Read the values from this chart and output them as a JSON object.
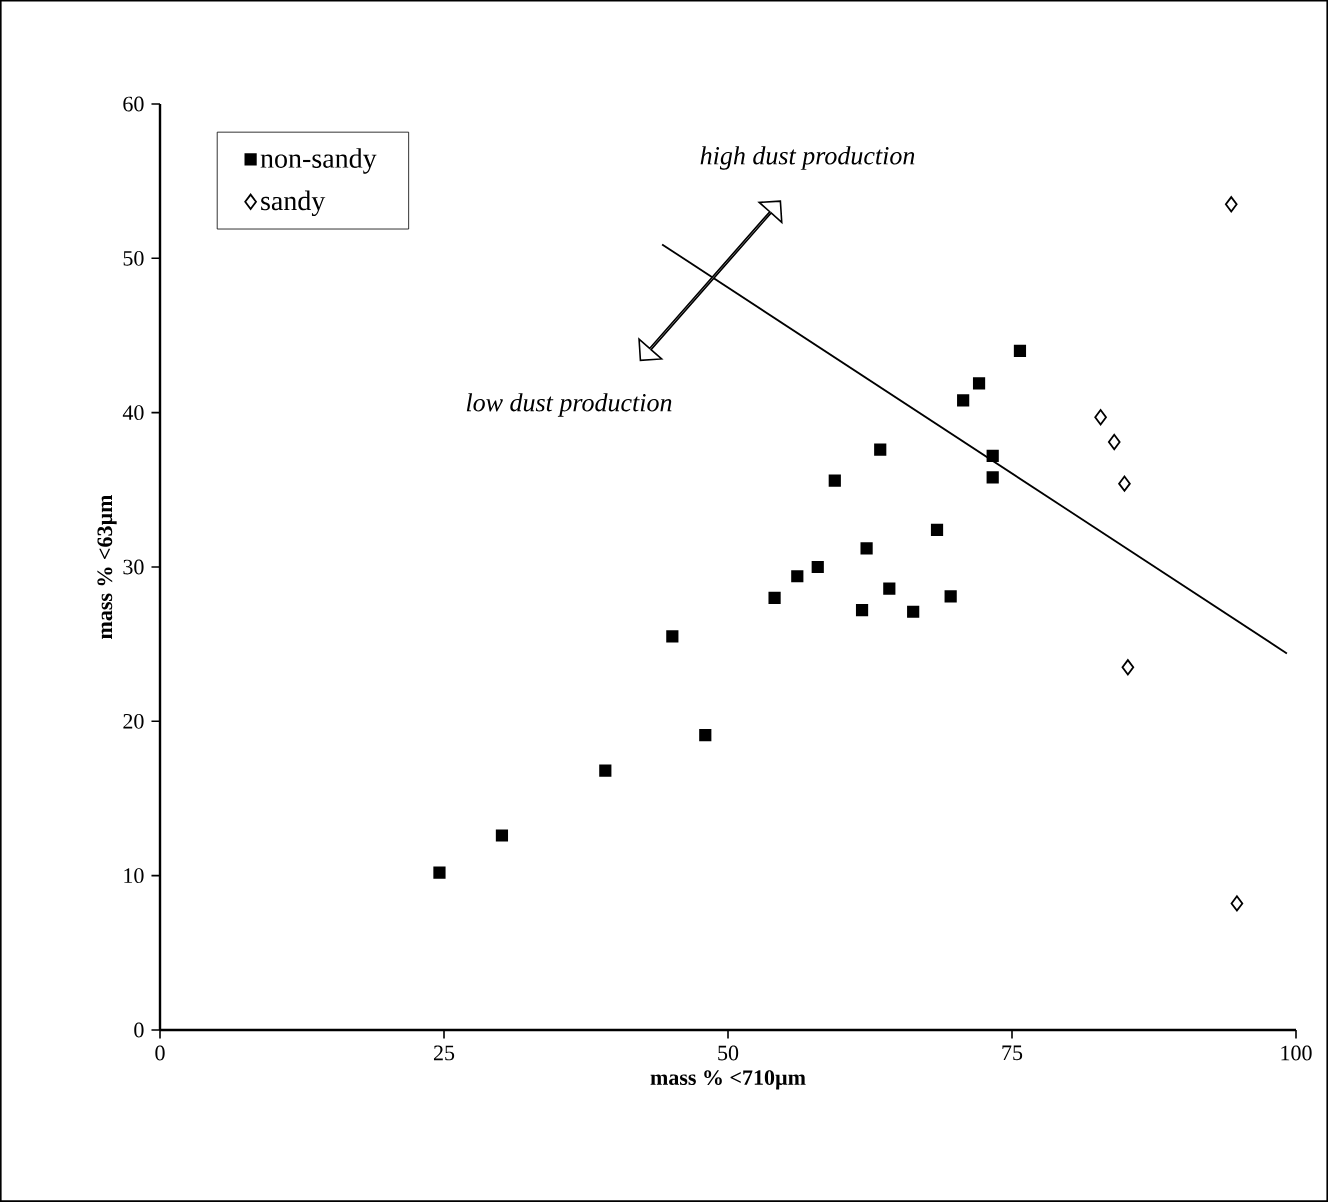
{
  "chart_data": {
    "type": "scatter",
    "xlabel": "mass % <710µm",
    "ylabel": "mass % <63µm",
    "xlim": [
      0,
      100
    ],
    "ylim": [
      0,
      60
    ],
    "xticks": [
      0,
      25,
      50,
      75,
      100
    ],
    "yticks": [
      0,
      10,
      20,
      30,
      40,
      50,
      60
    ],
    "legend": "top left",
    "annotations": [
      "high dust production",
      "low dust production"
    ],
    "series": [
      {
        "name": "non-sandy",
        "color": "#000000",
        "marker": "square",
        "x": [
          24.6,
          30.1,
          39.2,
          45.1,
          48.0,
          54.1,
          56.1,
          57.9,
          59.4,
          61.8,
          62.2,
          63.4,
          64.2,
          66.3,
          68.4,
          69.6,
          70.7,
          72.1,
          73.3,
          73.3,
          75.7
        ],
        "values": [
          10.2,
          12.6,
          16.8,
          25.5,
          19.1,
          28.0,
          29.4,
          30.0,
          35.6,
          27.2,
          31.2,
          37.6,
          28.6,
          27.1,
          32.4,
          28.1,
          40.8,
          41.9,
          37.2,
          35.8,
          44.0
        ]
      },
      {
        "name": "sandy",
        "color": "#000000",
        "marker": "diamond",
        "x": [
          94.3,
          82.8,
          84.0,
          84.9,
          85.2,
          94.8
        ],
        "values": [
          53.5,
          39.7,
          38.1,
          35.4,
          23.5,
          8.2
        ]
      },
      {
        "type": "line",
        "color": "#000000",
        "marker": "none",
        "x": [
          44.2,
          99.2
        ],
        "values": [
          50.9,
          24.4
        ]
      }
    ]
  }
}
